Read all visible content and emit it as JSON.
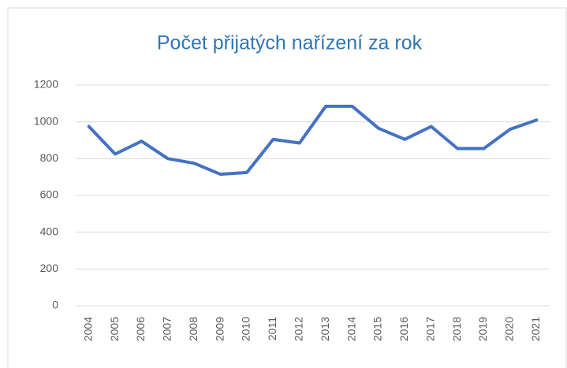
{
  "chart_data": {
    "type": "line",
    "title": "Počet přijatých nařízení za rok",
    "categories": [
      "2004",
      "2005",
      "2006",
      "2007",
      "2008",
      "2009",
      "2010",
      "2011",
      "2012",
      "2013",
      "2014",
      "2015",
      "2016",
      "2017",
      "2018",
      "2019",
      "2020",
      "2021"
    ],
    "series": [
      {
        "name": "Počet",
        "color": "#4472c4",
        "values": [
          975,
          825,
          895,
          800,
          775,
          715,
          725,
          905,
          885,
          1085,
          1085,
          965,
          905,
          975,
          855,
          855,
          960,
          1010
        ]
      }
    ],
    "ylim": [
      0,
      1200
    ],
    "yticks": [
      0,
      200,
      400,
      600,
      800,
      1000,
      1200
    ],
    "grid": true
  }
}
